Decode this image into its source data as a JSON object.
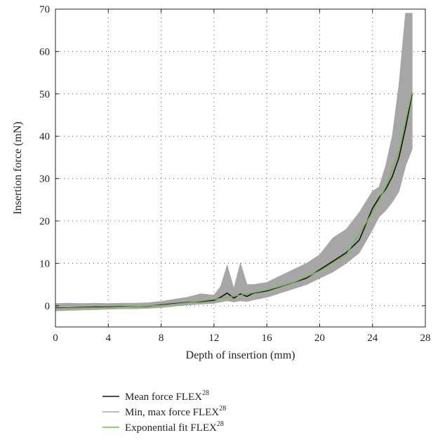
{
  "chart_data": {
    "type": "line",
    "xlabel": "Depth of insertion (mm)",
    "ylabel": "Insertion force (mN)",
    "xlim": [
      0,
      28
    ],
    "ylim": [
      -5,
      70
    ],
    "xticks": [
      0,
      4,
      8,
      12,
      16,
      20,
      24,
      28
    ],
    "yticks": [
      0,
      10,
      20,
      30,
      40,
      50,
      60,
      70
    ],
    "grid": true,
    "legend_position": "bottom-left",
    "series": [
      {
        "name": "Mean force FLEX",
        "name_superscript": "28",
        "color": "#111111",
        "x": [
          0,
          1,
          2,
          3,
          4,
          5,
          6,
          7,
          8,
          9,
          10,
          11,
          12,
          12.5,
          13,
          13.5,
          14,
          14.5,
          15,
          16,
          17,
          18,
          19,
          20,
          21,
          22,
          23,
          24,
          24.5,
          25,
          25.5,
          26,
          26.5,
          27
        ],
        "y": [
          -0.5,
          -0.5,
          -0.4,
          -0.3,
          -0.3,
          -0.2,
          -0.2,
          -0.1,
          0.2,
          0.5,
          0.8,
          1.0,
          1.3,
          2.0,
          3.0,
          1.8,
          2.8,
          2.2,
          3.0,
          3.5,
          4.5,
          5.5,
          6.5,
          8.5,
          10.5,
          12.5,
          15.5,
          23.0,
          25.5,
          27.5,
          30.5,
          35.0,
          42.0,
          50.0
        ]
      },
      {
        "name": "Min, max force FLEX",
        "name_superscript": "28",
        "color": "#a6a6a6",
        "x": [
          0,
          1,
          2,
          3,
          4,
          5,
          6,
          7,
          8,
          9,
          10,
          11,
          12,
          12.5,
          13,
          13.5,
          14,
          14.5,
          15,
          16,
          17,
          18,
          19,
          20,
          21,
          22,
          23,
          24,
          24.5,
          25,
          25.5,
          26,
          26.5,
          27
        ],
        "y_min": [
          -1.2,
          -1.1,
          -1.0,
          -0.9,
          -0.8,
          -0.7,
          -0.7,
          -0.6,
          -0.4,
          -0.1,
          0.2,
          0.4,
          0.6,
          0.9,
          1.2,
          0.9,
          1.2,
          1.0,
          1.4,
          2.0,
          3.0,
          4.0,
          5.0,
          6.5,
          8.0,
          10.0,
          12.5,
          18.0,
          21.0,
          22.5,
          24.5,
          27.0,
          33.0,
          37.0
        ],
        "y_max": [
          0.5,
          0.6,
          0.5,
          0.6,
          0.5,
          0.6,
          0.6,
          0.7,
          1.0,
          1.5,
          2.0,
          2.8,
          2.5,
          4.5,
          9.5,
          4.0,
          10.0,
          5.0,
          5.0,
          5.5,
          7.0,
          8.5,
          10.0,
          12.0,
          16.0,
          18.0,
          22.0,
          27.0,
          28.0,
          33.0,
          40.0,
          52.0,
          69.0,
          69.0
        ]
      },
      {
        "name": "Exponential fit FLEX",
        "name_superscript": "28",
        "color": "#6cbf3c",
        "x": [
          0,
          2,
          4,
          6,
          8,
          10,
          12,
          14,
          16,
          18,
          20,
          22,
          24,
          25,
          26,
          27
        ],
        "y": [
          -0.6,
          -0.5,
          -0.4,
          -0.2,
          0.1,
          0.7,
          1.5,
          2.5,
          3.7,
          5.5,
          8.2,
          12.0,
          22.0,
          28.0,
          36.5,
          50.5
        ]
      }
    ]
  }
}
